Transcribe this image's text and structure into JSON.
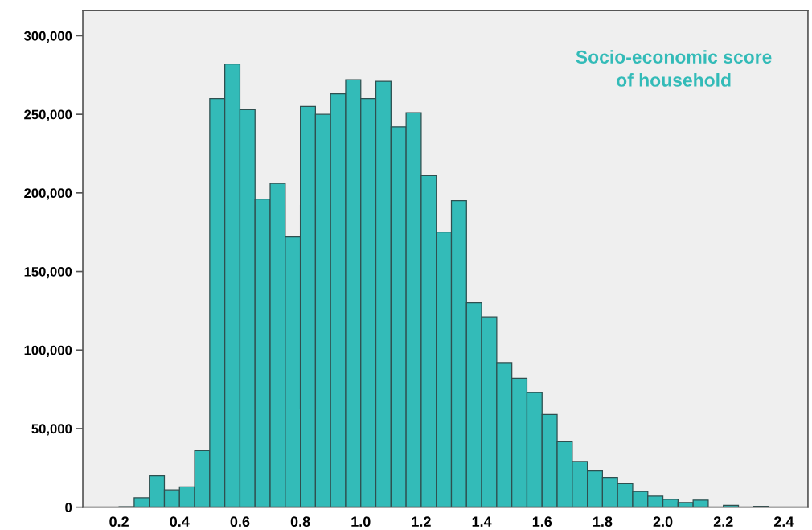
{
  "chart_data": {
    "type": "histogram",
    "title": "Socio-economic score\nof household",
    "color": "#33bbb8",
    "bins": [
      0.2,
      0.25,
      0.3,
      0.35,
      0.4,
      0.45,
      0.5,
      0.55,
      0.6,
      0.65,
      0.7,
      0.75,
      0.8,
      0.85,
      0.9,
      0.95,
      1.0,
      1.05,
      1.1,
      1.15,
      1.2,
      1.25,
      1.3,
      1.35,
      1.4,
      1.45,
      1.5,
      1.55,
      1.6,
      1.65,
      1.7,
      1.75,
      1.8,
      1.85,
      1.9,
      1.95,
      2.0,
      2.05,
      2.1,
      2.15,
      2.2,
      2.25,
      2.3,
      2.35
    ],
    "values": [
      300,
      6000,
      20000,
      11000,
      13000,
      36000,
      260000,
      282000,
      253000,
      196000,
      206000,
      172000,
      255000,
      250000,
      263000,
      272000,
      260000,
      271000,
      242000,
      251000,
      211000,
      175000,
      195000,
      130000,
      121000,
      92000,
      82000,
      73000,
      59000,
      42000,
      29000,
      23000,
      19000,
      15000,
      10000,
      7000,
      5000,
      3000,
      4500,
      0,
      1200,
      0,
      500
    ],
    "xlim": [
      0.08,
      2.48
    ],
    "xticks": [
      0.2,
      0.4,
      0.6,
      0.8,
      {
        "value": 1.0,
        "label": "1.0"
      },
      1.2,
      1.4,
      1.6,
      1.8,
      {
        "value": 2.0,
        "label": "2.0"
      },
      2.2,
      2.4
    ],
    "ylim": [
      0,
      316000
    ],
    "yticks": [
      0,
      {
        "value": 50000,
        "label": "50,000"
      },
      {
        "value": 100000,
        "label": "100,000"
      },
      {
        "value": 150000,
        "label": "150,000"
      },
      {
        "value": 200000,
        "label": "200,000"
      },
      {
        "value": 250000,
        "label": "250,000"
      },
      {
        "value": 300000,
        "label": "300,000"
      }
    ],
    "grid": false,
    "legend": false
  }
}
